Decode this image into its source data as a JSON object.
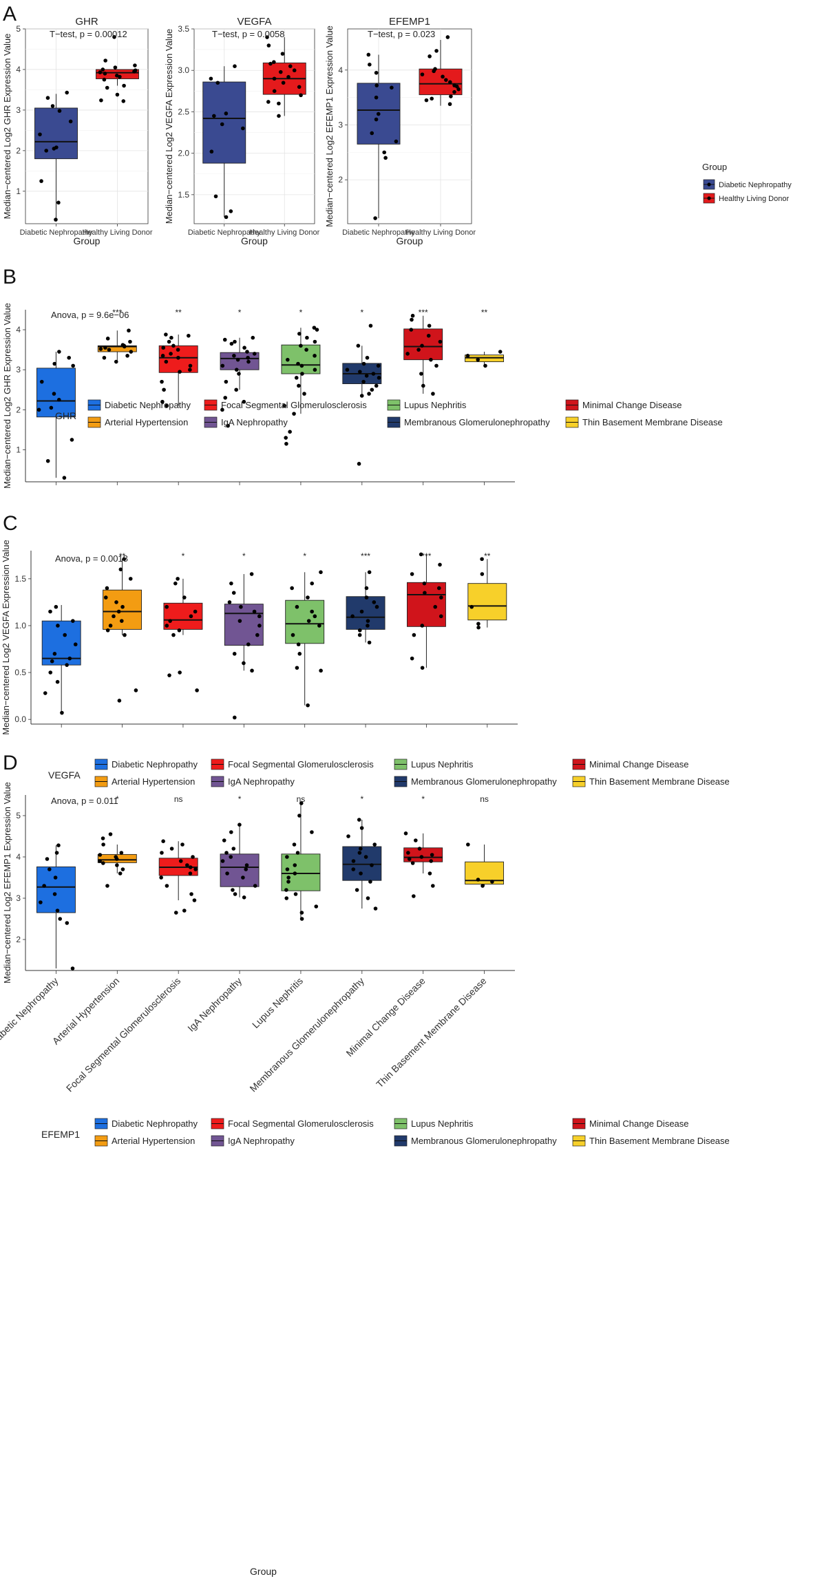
{
  "colors": {
    "dn_a": "#3a4a91",
    "hld_a": "#e41a1c",
    "dn": "#1d6fe0",
    "ah": "#f39c12",
    "fsgs": "#ee1c1c",
    "iga": "#715593",
    "ln": "#7ec16a",
    "mgn": "#213a6b",
    "mcd": "#d0141b",
    "tbmd": "#f7d02a"
  },
  "panel_labels": [
    "A",
    "B",
    "C",
    "D"
  ],
  "legend_a": {
    "title": "Group",
    "items": [
      {
        "label": "Diabetic Nephropathy",
        "color_key": "dn_a"
      },
      {
        "label": "Healthy Living Donor",
        "color_key": "hld_a"
      }
    ]
  },
  "legend_bcd": {
    "items": [
      {
        "label": "Diabetic Nephropathy",
        "color_key": "dn"
      },
      {
        "label": "Focal Segmental Glomerulosclerosis",
        "color_key": "fsgs"
      },
      {
        "label": "Lupus Nephritis",
        "color_key": "ln"
      },
      {
        "label": "Minimal Change Disease",
        "color_key": "mcd"
      },
      {
        "label": "Arterial Hypertension",
        "color_key": "ah"
      },
      {
        "label": "IgA Nephropathy",
        "color_key": "iga"
      },
      {
        "label": "Membranous Glomerulonephropathy",
        "color_key": "mgn"
      },
      {
        "label": "Thin Basement Membrane Disease",
        "color_key": "tbmd"
      }
    ]
  },
  "chart_data": [
    {
      "panel": "A",
      "type": "box",
      "title": "GHR",
      "annotation": "T−test, p = 0.00012",
      "xlabel": "Group",
      "ylabel": "Median−centered Log2 GHR Expression Value",
      "categories": [
        "Diabetic Nephropathy",
        "Healthy Living Donor"
      ],
      "ylim": [
        0.2,
        5.0
      ],
      "yticks": [
        1,
        2,
        3,
        4,
        5
      ],
      "boxes": [
        {
          "q1": 1.8,
          "median": 2.22,
          "q3": 3.05,
          "lower": 0.3,
          "upper": 3.4,
          "points": [
            0.3,
            0.72,
            1.25,
            2.0,
            2.05,
            2.08,
            2.4,
            2.72,
            2.98,
            3.1,
            3.3,
            3.43
          ]
        },
        {
          "q1": 3.77,
          "median": 3.92,
          "q3": 4.0,
          "lower": 3.6,
          "upper": 4.0,
          "points": [
            3.22,
            3.24,
            3.38,
            3.55,
            3.6,
            3.75,
            3.82,
            3.85,
            3.9,
            3.93,
            3.95,
            3.98,
            4.0,
            4.05,
            4.1,
            4.22,
            4.8
          ]
        }
      ]
    },
    {
      "panel": "A",
      "type": "box",
      "title": "VEGFA",
      "annotation": "T−test, p = 0.0058",
      "xlabel": "Group",
      "ylabel": "Median−centered Log2 VEGFA Expression Value",
      "categories": [
        "Diabetic Nephropathy",
        "Healthy Living Donor"
      ],
      "ylim": [
        1.15,
        3.5
      ],
      "yticks": [
        1.5,
        2.0,
        2.5,
        3.0,
        3.5
      ],
      "boxes": [
        {
          "q1": 1.88,
          "median": 2.42,
          "q3": 2.86,
          "lower": 1.23,
          "upper": 3.05,
          "points": [
            1.23,
            1.3,
            1.48,
            2.02,
            2.3,
            2.35,
            2.45,
            2.48,
            2.85,
            2.9,
            3.05
          ]
        },
        {
          "q1": 2.71,
          "median": 2.9,
          "q3": 3.09,
          "lower": 2.45,
          "upper": 3.4,
          "points": [
            2.45,
            2.6,
            2.62,
            2.7,
            2.75,
            2.8,
            2.85,
            2.9,
            2.92,
            2.98,
            3.0,
            3.05,
            3.08,
            3.1,
            3.2,
            3.3,
            3.4
          ]
        }
      ]
    },
    {
      "panel": "A",
      "type": "box",
      "title": "EFEMP1",
      "annotation": "T−test, p = 0.023",
      "xlabel": "Group",
      "ylabel": "Median−centered Log2 EFEMP1 Expression Value",
      "categories": [
        "Diabetic Nephropathy",
        "Healthy Living Donor"
      ],
      "ylim": [
        1.2,
        4.75
      ],
      "yticks": [
        2,
        3,
        4
      ],
      "boxes": [
        {
          "q1": 2.65,
          "median": 3.27,
          "q3": 3.76,
          "lower": 1.3,
          "upper": 4.28,
          "points": [
            1.3,
            2.4,
            2.5,
            2.7,
            2.85,
            3.1,
            3.2,
            3.5,
            3.68,
            3.72,
            3.95,
            4.1,
            4.28
          ]
        },
        {
          "q1": 3.55,
          "median": 3.75,
          "q3": 4.02,
          "lower": 3.35,
          "upper": 4.55,
          "points": [
            3.38,
            3.45,
            3.48,
            3.52,
            3.6,
            3.65,
            3.7,
            3.72,
            3.78,
            3.82,
            3.88,
            3.92,
            3.98,
            4.02,
            4.25,
            4.35,
            4.6
          ]
        }
      ]
    },
    {
      "panel": "B",
      "type": "box",
      "gene": "GHR",
      "annotation": "Anova, p = 9.6e−06",
      "xlabel": "",
      "ylabel": "Median−centered Log2 GHR Expression Value",
      "categories": [
        "Diabetic Nephropathy",
        "Arterial Hypertension",
        "Focal Segmental Glomerulosclerosis",
        "IgA Nephropathy",
        "Lupus Nephritis",
        "Membranous Glomerulonephropathy",
        "Minimal Change Disease",
        "Thin Basement Membrane Disease"
      ],
      "ylim": [
        0.2,
        4.5
      ],
      "yticks": [
        1,
        2,
        3,
        4
      ],
      "significance": [
        "",
        "***",
        "**",
        "*",
        "*",
        "*",
        "***",
        "**"
      ],
      "boxes": [
        {
          "q1": 1.82,
          "median": 2.22,
          "q3": 3.04,
          "lower": 0.3,
          "upper": 3.45,
          "points": [
            0.3,
            0.72,
            1.25,
            2.0,
            2.05,
            2.25,
            2.4,
            2.7,
            3.1,
            3.15,
            3.3,
            3.45
          ]
        },
        {
          "q1": 3.45,
          "median": 3.58,
          "q3": 3.6,
          "lower": 3.2,
          "upper": 3.98,
          "points": [
            3.2,
            3.3,
            3.35,
            3.45,
            3.5,
            3.52,
            3.55,
            3.58,
            3.6,
            3.62,
            3.7,
            3.78,
            3.98
          ]
        },
        {
          "q1": 2.93,
          "median": 3.3,
          "q3": 3.6,
          "lower": 2.1,
          "upper": 3.88,
          "points": [
            2.1,
            2.2,
            2.5,
            2.7,
            2.95,
            3.0,
            3.1,
            3.2,
            3.3,
            3.35,
            3.4,
            3.5,
            3.55,
            3.6,
            3.7,
            3.8,
            3.85,
            3.88
          ]
        },
        {
          "q1": 3.0,
          "median": 3.28,
          "q3": 3.43,
          "lower": 2.5,
          "upper": 3.8,
          "points": [
            1.6,
            2.0,
            2.2,
            2.3,
            2.5,
            2.7,
            2.9,
            3.0,
            3.1,
            3.2,
            3.25,
            3.3,
            3.35,
            3.4,
            3.45,
            3.55,
            3.65,
            3.7,
            3.75,
            3.8
          ]
        },
        {
          "q1": 2.9,
          "median": 3.12,
          "q3": 3.62,
          "lower": 1.9,
          "upper": 4.05,
          "points": [
            1.15,
            1.3,
            1.45,
            1.9,
            2.1,
            2.4,
            2.6,
            2.8,
            2.9,
            3.0,
            3.1,
            3.15,
            3.25,
            3.35,
            3.5,
            3.6,
            3.7,
            3.8,
            3.9,
            4.0,
            4.05
          ]
        },
        {
          "q1": 2.65,
          "median": 2.9,
          "q3": 3.16,
          "lower": 2.35,
          "upper": 3.6,
          "points": [
            0.65,
            2.35,
            2.4,
            2.5,
            2.6,
            2.7,
            2.8,
            2.85,
            2.9,
            2.95,
            3.0,
            3.1,
            3.15,
            3.3,
            3.6,
            4.1
          ]
        },
        {
          "q1": 3.25,
          "median": 3.58,
          "q3": 4.02,
          "lower": 2.4,
          "upper": 4.35,
          "points": [
            2.4,
            2.6,
            2.9,
            3.1,
            3.25,
            3.4,
            3.5,
            3.6,
            3.7,
            3.85,
            4.0,
            4.1,
            4.25,
            4.35
          ]
        },
        {
          "q1": 3.2,
          "median": 3.3,
          "q3": 3.37,
          "lower": 3.1,
          "upper": 3.45,
          "points": [
            3.1,
            3.25,
            3.35,
            3.45
          ]
        }
      ]
    },
    {
      "panel": "C",
      "type": "box",
      "gene": "VEGFA",
      "annotation": "Anova, p = 0.0018",
      "xlabel": "",
      "ylabel": "Median−centered Log2 VEGFA Expression Value",
      "categories": [
        "Diabetic Nephropathy",
        "Arterial Hypertension",
        "Focal Segmental Glomerulosclerosis",
        "IgA Nephropathy",
        "Lupus Nephritis",
        "Membranous Glomerulonephropathy",
        "Minimal Change Disease",
        "Thin Basement Membrane Disease"
      ],
      "ylim": [
        -0.05,
        1.8
      ],
      "yticks": [
        0.0,
        0.5,
        1.0,
        1.5
      ],
      "significance": [
        "",
        "**",
        "*",
        "*",
        "*",
        "***",
        "***",
        "**"
      ],
      "boxes": [
        {
          "q1": 0.58,
          "median": 0.65,
          "q3": 1.05,
          "lower": 0.07,
          "upper": 1.22,
          "points": [
            0.07,
            0.28,
            0.4,
            0.5,
            0.58,
            0.62,
            0.65,
            0.7,
            0.8,
            0.9,
            1.0,
            1.05,
            1.15,
            1.2
          ]
        },
        {
          "q1": 0.96,
          "median": 1.15,
          "q3": 1.38,
          "lower": 0.9,
          "upper": 1.71,
          "points": [
            0.2,
            0.31,
            0.9,
            0.95,
            1.0,
            1.05,
            1.1,
            1.15,
            1.2,
            1.25,
            1.3,
            1.4,
            1.5,
            1.6,
            1.71
          ]
        },
        {
          "q1": 0.96,
          "median": 1.06,
          "q3": 1.24,
          "lower": 0.9,
          "upper": 1.5,
          "points": [
            0.31,
            0.47,
            0.5,
            0.9,
            0.95,
            1.0,
            1.05,
            1.1,
            1.15,
            1.2,
            1.3,
            1.45,
            1.5
          ]
        },
        {
          "q1": 0.79,
          "median": 1.13,
          "q3": 1.23,
          "lower": 0.52,
          "upper": 1.55,
          "points": [
            0.02,
            0.52,
            0.6,
            0.7,
            0.8,
            0.9,
            1.0,
            1.05,
            1.1,
            1.15,
            1.2,
            1.25,
            1.35,
            1.45,
            1.55
          ]
        },
        {
          "q1": 0.81,
          "median": 1.02,
          "q3": 1.27,
          "lower": 0.15,
          "upper": 1.57,
          "points": [
            0.15,
            0.52,
            0.55,
            0.7,
            0.8,
            0.9,
            1.0,
            1.05,
            1.1,
            1.15,
            1.2,
            1.3,
            1.4,
            1.45,
            1.57
          ]
        },
        {
          "q1": 0.96,
          "median": 1.09,
          "q3": 1.31,
          "lower": 0.82,
          "upper": 1.57,
          "points": [
            0.82,
            0.9,
            0.95,
            1.0,
            1.05,
            1.1,
            1.15,
            1.2,
            1.25,
            1.3,
            1.4,
            1.57
          ]
        },
        {
          "q1": 0.99,
          "median": 1.33,
          "q3": 1.46,
          "lower": 0.55,
          "upper": 1.76,
          "points": [
            0.55,
            0.65,
            0.9,
            1.0,
            1.1,
            1.2,
            1.3,
            1.35,
            1.4,
            1.45,
            1.55,
            1.65,
            1.76
          ]
        },
        {
          "q1": 1.06,
          "median": 1.21,
          "q3": 1.45,
          "lower": 0.98,
          "upper": 1.71,
          "points": [
            0.98,
            1.02,
            1.2,
            1.55,
            1.71
          ]
        }
      ]
    },
    {
      "panel": "D",
      "type": "box",
      "gene": "EFEMP1",
      "annotation": "Anova, p = 0.011",
      "xlabel": "Group",
      "ylabel": "Median−centered Log2 EFEMP1 Expression Value",
      "categories": [
        "Diabetic Nephropathy",
        "Arterial Hypertension",
        "Focal Segmental Glomerulosclerosis",
        "IgA Nephropathy",
        "Lupus Nephritis",
        "Membranous Glomerulonephropathy",
        "Minimal Change Disease",
        "Thin Basement Membrane Disease"
      ],
      "ylim": [
        1.25,
        5.5
      ],
      "yticks": [
        2,
        3,
        4,
        5
      ],
      "significance": [
        "",
        "*",
        "ns",
        "*",
        "ns",
        "*",
        "*",
        "ns"
      ],
      "boxes": [
        {
          "q1": 2.65,
          "median": 3.27,
          "q3": 3.76,
          "lower": 1.3,
          "upper": 4.28,
          "points": [
            1.3,
            2.4,
            2.5,
            2.7,
            2.9,
            3.1,
            3.3,
            3.5,
            3.7,
            3.95,
            4.1,
            4.28
          ]
        },
        {
          "q1": 3.86,
          "median": 3.93,
          "q3": 4.06,
          "lower": 3.6,
          "upper": 4.3,
          "points": [
            3.3,
            3.6,
            3.7,
            3.8,
            3.85,
            3.9,
            3.95,
            4.0,
            4.05,
            4.1,
            4.3,
            4.45,
            4.55
          ]
        },
        {
          "q1": 3.55,
          "median": 3.75,
          "q3": 3.97,
          "lower": 2.95,
          "upper": 4.38,
          "points": [
            2.65,
            2.7,
            2.95,
            3.1,
            3.3,
            3.5,
            3.6,
            3.7,
            3.75,
            3.8,
            3.9,
            4.0,
            4.1,
            4.2,
            4.3,
            4.38
          ]
        },
        {
          "q1": 3.28,
          "median": 3.75,
          "q3": 4.07,
          "lower": 3.02,
          "upper": 4.78,
          "points": [
            3.02,
            3.1,
            3.2,
            3.3,
            3.5,
            3.6,
            3.7,
            3.8,
            3.9,
            4.0,
            4.1,
            4.2,
            4.4,
            4.6,
            4.78
          ]
        },
        {
          "q1": 3.18,
          "median": 3.6,
          "q3": 4.07,
          "lower": 2.5,
          "upper": 5.3,
          "points": [
            2.5,
            2.65,
            2.8,
            3.0,
            3.1,
            3.2,
            3.4,
            3.5,
            3.6,
            3.7,
            3.8,
            4.0,
            4.1,
            4.3,
            4.6,
            5.0,
            5.3
          ]
        },
        {
          "q1": 3.43,
          "median": 3.82,
          "q3": 4.25,
          "lower": 2.75,
          "upper": 4.9,
          "points": [
            2.75,
            3.0,
            3.2,
            3.4,
            3.6,
            3.7,
            3.8,
            3.9,
            4.0,
            4.1,
            4.2,
            4.3,
            4.5,
            4.7,
            4.9
          ]
        },
        {
          "q1": 3.88,
          "median": 3.99,
          "q3": 4.22,
          "lower": 3.6,
          "upper": 4.57,
          "points": [
            3.05,
            3.3,
            3.6,
            3.85,
            3.9,
            3.95,
            4.0,
            4.05,
            4.1,
            4.2,
            4.4,
            4.57
          ]
        },
        {
          "q1": 3.34,
          "median": 3.43,
          "q3": 3.88,
          "lower": 3.3,
          "upper": 4.3,
          "points": [
            3.3,
            3.4,
            3.45,
            4.3
          ]
        }
      ]
    }
  ]
}
